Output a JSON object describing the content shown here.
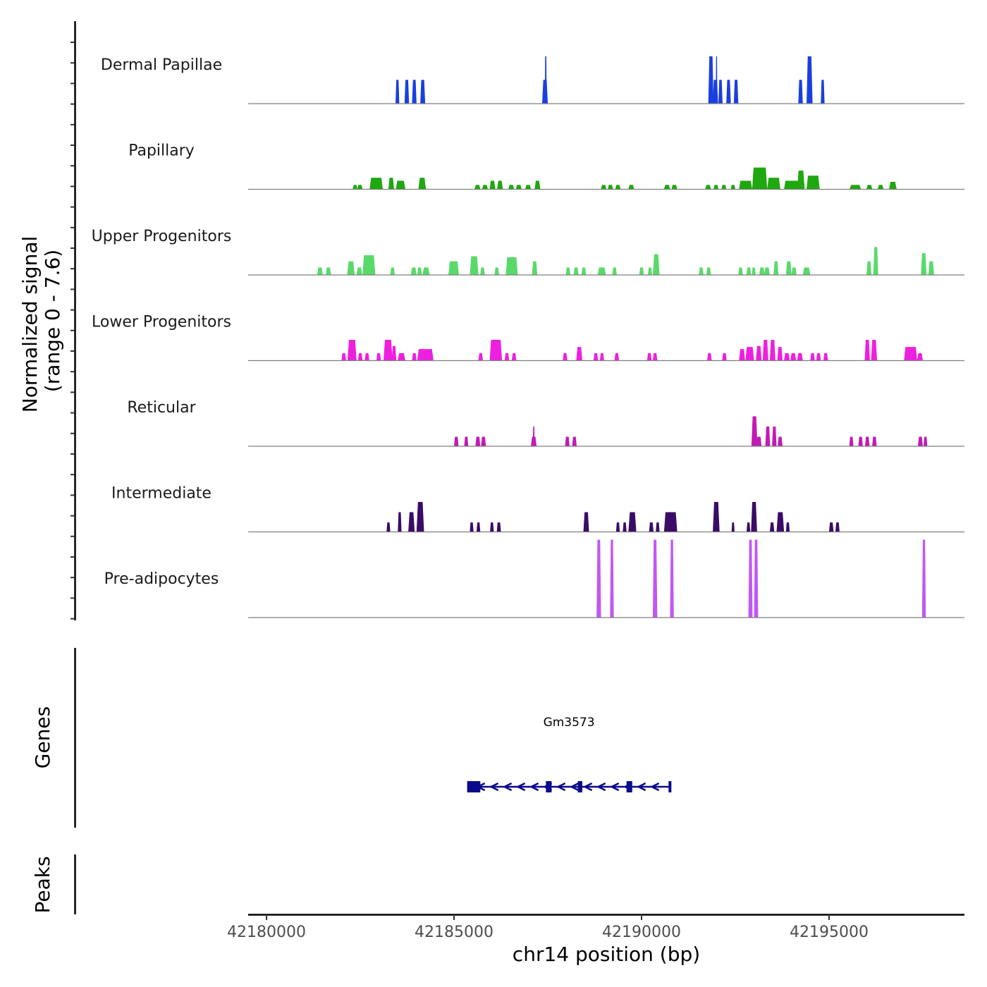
{
  "chart_data": {
    "type": "area",
    "title": "",
    "xlabel": "chr14 position (bp)",
    "ylabel": "Normalized signal\n(range 0 - 7.6)",
    "ylabel_lines": [
      "Normalized signal",
      "(range 0 - 7.6)"
    ],
    "ylim": [
      0,
      7.6
    ],
    "xlim": [
      42179510,
      42198610
    ],
    "x_ticks": [
      42180000,
      42185000,
      42190000,
      42195000
    ],
    "x_tick_labels": [
      "42180000",
      "42185000",
      "42190000",
      "42195000"
    ],
    "grid": false,
    "series": [
      {
        "name": "Dermal Papillae",
        "color": "#1a3fe0",
        "peaks": [
          [
            42183440,
            42183540,
            2.3
          ],
          [
            42183680,
            42183800,
            2.3
          ],
          [
            42183880,
            42184000,
            2.3
          ],
          [
            42184100,
            42184230,
            2.3
          ],
          [
            42187350,
            42187500,
            2.3
          ],
          [
            42187420,
            42187470,
            4.6
          ],
          [
            42191780,
            42191920,
            4.6
          ],
          [
            42191900,
            42192040,
            2.3
          ],
          [
            42191980,
            42192020,
            4.6
          ],
          [
            42192050,
            42192160,
            2.3
          ],
          [
            42192260,
            42192380,
            2.3
          ],
          [
            42192460,
            42192580,
            2.3
          ],
          [
            42194180,
            42194300,
            2.3
          ],
          [
            42194400,
            42194560,
            4.6
          ],
          [
            42194780,
            42194880,
            2.3
          ]
        ]
      },
      {
        "name": "Papillary",
        "color": "#1fa80f",
        "peaks": [
          [
            42182300,
            42182420,
            0.4
          ],
          [
            42182420,
            42182560,
            0.4
          ],
          [
            42182750,
            42183100,
            1.1
          ],
          [
            42183250,
            42183400,
            1.1
          ],
          [
            42183450,
            42183700,
            0.8
          ],
          [
            42184050,
            42184250,
            1.1
          ],
          [
            42185550,
            42185700,
            0.4
          ],
          [
            42185750,
            42185900,
            0.4
          ],
          [
            42185950,
            42186100,
            0.8
          ],
          [
            42186150,
            42186300,
            0.8
          ],
          [
            42186450,
            42186600,
            0.4
          ],
          [
            42186650,
            42186800,
            0.4
          ],
          [
            42186900,
            42187050,
            0.4
          ],
          [
            42187150,
            42187300,
            0.8
          ],
          [
            42188920,
            42189060,
            0.4
          ],
          [
            42189100,
            42189240,
            0.4
          ],
          [
            42189300,
            42189440,
            0.4
          ],
          [
            42189650,
            42189800,
            0.4
          ],
          [
            42190600,
            42190760,
            0.4
          ],
          [
            42190800,
            42190950,
            0.4
          ],
          [
            42191700,
            42191850,
            0.4
          ],
          [
            42191920,
            42192050,
            0.4
          ],
          [
            42192130,
            42192260,
            0.4
          ],
          [
            42192380,
            42192500,
            0.4
          ],
          [
            42192600,
            42192950,
            0.8
          ],
          [
            42192950,
            42193350,
            2.1
          ],
          [
            42193350,
            42193700,
            1.1
          ],
          [
            42193800,
            42194200,
            0.8
          ],
          [
            42194150,
            42194350,
            1.8
          ],
          [
            42194400,
            42194750,
            1.3
          ],
          [
            42195550,
            42195850,
            0.4
          ],
          [
            42196000,
            42196150,
            0.4
          ],
          [
            42196300,
            42196450,
            0.4
          ],
          [
            42196600,
            42196800,
            0.7
          ]
        ]
      },
      {
        "name": "Upper Progenitors",
        "color": "#5ad96b",
        "peaks": [
          [
            42181350,
            42181500,
            0.7
          ],
          [
            42181580,
            42181720,
            0.7
          ],
          [
            42182150,
            42182350,
            1.3
          ],
          [
            42182400,
            42182550,
            0.7
          ],
          [
            42182560,
            42182900,
            1.9
          ],
          [
            42183300,
            42183420,
            0.7
          ],
          [
            42183850,
            42184000,
            0.7
          ],
          [
            42184020,
            42184140,
            0.7
          ],
          [
            42184160,
            42184350,
            0.7
          ],
          [
            42184850,
            42185130,
            1.3
          ],
          [
            42185420,
            42185650,
            1.8
          ],
          [
            42185700,
            42185820,
            0.7
          ],
          [
            42186080,
            42186200,
            0.7
          ],
          [
            42186380,
            42186700,
            1.7
          ],
          [
            42187080,
            42187220,
            1.3
          ],
          [
            42187980,
            42188100,
            0.7
          ],
          [
            42188190,
            42188320,
            0.7
          ],
          [
            42188400,
            42188520,
            0.7
          ],
          [
            42188830,
            42189050,
            0.7
          ],
          [
            42189220,
            42189340,
            0.7
          ],
          [
            42189940,
            42190060,
            0.7
          ],
          [
            42190170,
            42190280,
            0.7
          ],
          [
            42190300,
            42190480,
            2.0
          ],
          [
            42191530,
            42191650,
            0.7
          ],
          [
            42191730,
            42191850,
            0.7
          ],
          [
            42192580,
            42192700,
            0.7
          ],
          [
            42192800,
            42192920,
            0.7
          ],
          [
            42192940,
            42193040,
            0.7
          ],
          [
            42193140,
            42193280,
            0.7
          ],
          [
            42193270,
            42193420,
            0.7
          ],
          [
            42193520,
            42193650,
            1.3
          ],
          [
            42193850,
            42194000,
            1.3
          ],
          [
            42194000,
            42194130,
            0.7
          ],
          [
            42194300,
            42194500,
            0.7
          ],
          [
            42196000,
            42196130,
            1.3
          ],
          [
            42196180,
            42196310,
            2.7
          ],
          [
            42197450,
            42197600,
            2.1
          ],
          [
            42197650,
            42197800,
            1.3
          ]
        ]
      },
      {
        "name": "Lower Progenitors",
        "color": "#ee20e0",
        "peaks": [
          [
            42182000,
            42182120,
            0.7
          ],
          [
            42182160,
            42182400,
            2.0
          ],
          [
            42182440,
            42182560,
            0.7
          ],
          [
            42182620,
            42182740,
            0.7
          ],
          [
            42182930,
            42183050,
            0.7
          ],
          [
            42183120,
            42183360,
            2.0
          ],
          [
            42183340,
            42183460,
            1.4
          ],
          [
            42183500,
            42183700,
            0.7
          ],
          [
            42183880,
            42184000,
            0.7
          ],
          [
            42184020,
            42184450,
            1.1
          ],
          [
            42185650,
            42185770,
            0.7
          ],
          [
            42185950,
            42186280,
            2.0
          ],
          [
            42186350,
            42186470,
            0.7
          ],
          [
            42186540,
            42186660,
            0.7
          ],
          [
            42187900,
            42188020,
            0.7
          ],
          [
            42188260,
            42188420,
            1.3
          ],
          [
            42188720,
            42188840,
            0.7
          ],
          [
            42188890,
            42189000,
            0.7
          ],
          [
            42189280,
            42189400,
            0.7
          ],
          [
            42190150,
            42190270,
            0.7
          ],
          [
            42190300,
            42190420,
            0.7
          ],
          [
            42191750,
            42191870,
            0.7
          ],
          [
            42192150,
            42192270,
            0.7
          ],
          [
            42192600,
            42192760,
            1.1
          ],
          [
            42192770,
            42193000,
            1.3
          ],
          [
            42193050,
            42193200,
            1.4
          ],
          [
            42193230,
            42193380,
            2.0
          ],
          [
            42193420,
            42193570,
            2.0
          ],
          [
            42193620,
            42193760,
            1.3
          ],
          [
            42193800,
            42193950,
            0.7
          ],
          [
            42193970,
            42194120,
            0.7
          ],
          [
            42194150,
            42194300,
            0.7
          ],
          [
            42194500,
            42194620,
            0.7
          ],
          [
            42194660,
            42194780,
            0.7
          ],
          [
            42194850,
            42194970,
            0.7
          ],
          [
            42195950,
            42196090,
            2.0
          ],
          [
            42196120,
            42196280,
            2.0
          ],
          [
            42197000,
            42197350,
            1.3
          ],
          [
            42197350,
            42197500,
            0.7
          ]
        ]
      },
      {
        "name": "Reticular",
        "color": "#c21bb4",
        "peaks": [
          [
            42185000,
            42185120,
            0.9
          ],
          [
            42185270,
            42185380,
            0.9
          ],
          [
            42185570,
            42185700,
            0.9
          ],
          [
            42185720,
            42185850,
            0.9
          ],
          [
            42187050,
            42187200,
            0.9
          ],
          [
            42187100,
            42187150,
            1.9
          ],
          [
            42187960,
            42188080,
            0.9
          ],
          [
            42188150,
            42188270,
            0.9
          ],
          [
            42192930,
            42193090,
            2.9
          ],
          [
            42193060,
            42193200,
            0.9
          ],
          [
            42193300,
            42193430,
            1.9
          ],
          [
            42193480,
            42193600,
            1.9
          ],
          [
            42193630,
            42193760,
            0.9
          ],
          [
            42195540,
            42195650,
            0.9
          ],
          [
            42195780,
            42195900,
            0.9
          ],
          [
            42195960,
            42196080,
            0.9
          ],
          [
            42196150,
            42196270,
            0.9
          ],
          [
            42197370,
            42197500,
            0.9
          ],
          [
            42197520,
            42197620,
            0.9
          ]
        ]
      },
      {
        "name": "Intermediate",
        "color": "#3a0c66",
        "peaks": [
          [
            42183200,
            42183300,
            0.9
          ],
          [
            42183500,
            42183600,
            1.9
          ],
          [
            42183780,
            42183950,
            1.9
          ],
          [
            42184000,
            42184200,
            2.9
          ],
          [
            42185420,
            42185520,
            0.9
          ],
          [
            42185600,
            42185700,
            0.9
          ],
          [
            42185960,
            42186060,
            0.9
          ],
          [
            42186140,
            42186250,
            0.9
          ],
          [
            42188450,
            42188600,
            1.9
          ],
          [
            42189320,
            42189420,
            0.9
          ],
          [
            42189500,
            42189600,
            0.9
          ],
          [
            42189650,
            42189860,
            1.9
          ],
          [
            42190200,
            42190320,
            0.9
          ],
          [
            42190380,
            42190480,
            0.9
          ],
          [
            42190600,
            42190950,
            1.9
          ],
          [
            42191900,
            42192080,
            2.9
          ],
          [
            42192400,
            42192480,
            0.9
          ],
          [
            42192800,
            42192900,
            0.9
          ],
          [
            42192920,
            42193080,
            2.9
          ],
          [
            42193420,
            42193540,
            0.9
          ],
          [
            42193600,
            42193800,
            1.9
          ],
          [
            42193850,
            42193950,
            0.9
          ],
          [
            42195000,
            42195120,
            0.9
          ],
          [
            42195170,
            42195280,
            0.9
          ]
        ]
      },
      {
        "name": "Pre-adipocytes",
        "color": "#c157f5",
        "peaks": [
          [
            42188800,
            42188920,
            7.6
          ],
          [
            42189160,
            42189260,
            7.6
          ],
          [
            42190300,
            42190420,
            7.6
          ],
          [
            42190760,
            42190860,
            7.6
          ],
          [
            42192850,
            42192960,
            7.6
          ],
          [
            42193000,
            42193110,
            7.6
          ],
          [
            42197480,
            42197580,
            7.6
          ]
        ]
      }
    ],
    "genes_track": {
      "label": "Genes",
      "genes": [
        {
          "name": "Gm3573",
          "strand": "-",
          "color": "#0a0a8a",
          "start": 42185350,
          "end": 42190780,
          "exons": [
            [
              42185350,
              42185700
            ],
            [
              42187450,
              42187600
            ],
            [
              42188300,
              42188420
            ],
            [
              42189600,
              42189750
            ],
            [
              42190720,
              42190780
            ]
          ]
        }
      ]
    },
    "peaks_track": {
      "label": "Peaks",
      "peaks": []
    }
  }
}
